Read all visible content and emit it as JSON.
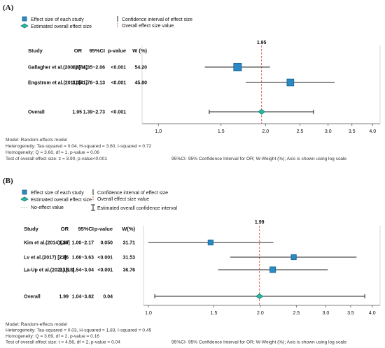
{
  "chart_data": [
    {
      "type": "forest",
      "panel_label": "(A)",
      "legend": {
        "study_effect": "Effect size of each study",
        "overall_effect": "Estimated overall effect size",
        "ci": "Confidence interval of effect size",
        "overall_value": "Overall effect size value"
      },
      "columns": [
        "Study",
        "OR",
        "95%CI",
        "p-value",
        "W (%)"
      ],
      "studies": [
        {
          "name": "Gallagher et al.(2008) [44]",
          "or": 1.67,
          "or_text": "1.67",
          "ci_low": 1.35,
          "ci_high": 2.06,
          "ci_text": "1.35~2.06",
          "p_text": "<0.001",
          "w": 54.2,
          "w_text": "54.20"
        },
        {
          "name": "Engstrom et al.(2011) [41]",
          "or": 2.35,
          "or_text": "2.35",
          "ci_low": 1.76,
          "ci_high": 3.13,
          "ci_text": "1.76~3.13",
          "p_text": "<0.001",
          "w": 45.8,
          "w_text": "45.80"
        }
      ],
      "overall": {
        "name": "Overall",
        "or": 1.95,
        "or_text": "1.95",
        "ci_low": 1.39,
        "ci_high": 2.73,
        "ci_text": "1.39~2.73",
        "p_text": "<0.001"
      },
      "overall_value_label": "1.95",
      "x_scale": "log",
      "xlim": [
        0.9,
        4.2
      ],
      "x_ticks": [
        1.0,
        1.5,
        2.0,
        2.5,
        3.0,
        3.5,
        4.0
      ],
      "x_tick_labels": [
        "1.0",
        "1.5",
        "2.0",
        "2.5",
        "3.0",
        "3.5",
        "4.0"
      ],
      "notes": [
        "Model: Random-effects model",
        "Heterogeneity: Tau-squared = 0.04, H-squared = 3.60, I-squared = 0.72",
        "Homogeneity: Q = 3.60, df = 1, p-value = 0.06",
        "Test of overall effect size: z = 3.90, p-value<0.001"
      ],
      "footnote": "95%CI- 95% Confidence Interval for OR; W-Weight (%); Axis is shown using log scale"
    },
    {
      "type": "forest",
      "panel_label": "(B)",
      "legend": {
        "study_effect": "Effect size of each study",
        "overall_effect": "Estimated overall effect size",
        "no_effect": "No-effect value",
        "ci": "Confidence interval of effect size",
        "overall_value": "Overall effect size value",
        "overall_ci": "Estimated overall confidence interval"
      },
      "columns": [
        "Study",
        "OR",
        "95%CI",
        "p-value",
        "W(%)"
      ],
      "studies": [
        {
          "name": "Kim et al.(2014) [26]",
          "or": 1.47,
          "or_text": "1.47",
          "ci_low": 1.0,
          "ci_high": 2.17,
          "ci_text": "1.00~2.17",
          "p_text": "0.050",
          "w": 31.71,
          "w_text": "31.71"
        },
        {
          "name": "Lv et al.(2017) [23]",
          "or": 2.46,
          "or_text": "2.46",
          "ci_low": 1.66,
          "ci_high": 3.63,
          "ci_text": "1.66~3.63",
          "p_text": "<0.001",
          "w": 31.53,
          "w_text": "31.53"
        },
        {
          "name": "La-Up et al.(2021) [18]",
          "or": 2.16,
          "or_text": "2.16",
          "ci_low": 1.54,
          "ci_high": 3.04,
          "ci_text": "1.54~3.04",
          "p_text": "<0.001",
          "w": 36.76,
          "w_text": "36.76"
        }
      ],
      "overall": {
        "name": "Overall",
        "or": 1.99,
        "or_text": "1.99",
        "ci_low": 1.04,
        "ci_high": 3.82,
        "ci_text": "1.04~3.82",
        "p_text": "0.04"
      },
      "overall_value_label": "1.99",
      "x_scale": "log",
      "xlim": [
        0.97,
        4.2
      ],
      "x_ticks": [
        1.0,
        1.5,
        2.0,
        2.5,
        3.0,
        3.5,
        4.0
      ],
      "x_tick_labels": [
        "1.0",
        "1.5",
        "2.0",
        "2.5",
        "3.0",
        "3.5",
        "4.0"
      ],
      "notes": [
        "Model: Random-effects model",
        "Heterogeneity: Tau-squared = 0.03, H-squared = 1.83, I-squared = 0.45",
        "Homogeneity: Q = 3.69, df = 2, p-value = 0.16",
        "Test of overall effect size: t = 4.56, df = 2, p-value = 0.04"
      ],
      "footnote": "95%CI- 95% Confidence Interval for OR; W-Weight (%); Axis is shown using log scale"
    }
  ],
  "colors": {
    "study_marker": "#2a8ac2",
    "study_marker_edge": "#1b5f8a",
    "overall_marker": "#2bb5a3",
    "overall_marker_edge": "#1b7d70",
    "ref_line": "#d9534f",
    "ci_line": "#222222",
    "axis": "#555555"
  }
}
